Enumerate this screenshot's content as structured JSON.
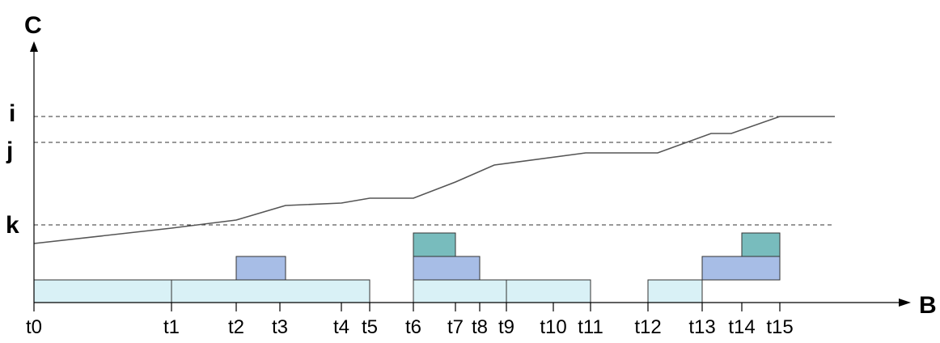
{
  "axes": {
    "x_label": "B",
    "y_label": "C"
  },
  "levels": [
    {
      "label": "i"
    },
    {
      "label": "j"
    },
    {
      "label": "k"
    }
  ],
  "ticks": [
    "t0",
    "t1",
    "t2",
    "t3",
    "t4",
    "t5",
    "t6",
    "t7",
    "t8",
    "t9",
    "t10",
    "t11",
    "t12",
    "t13",
    "t14",
    "t15"
  ],
  "colors": {
    "light_block": "#d9f1f6",
    "mid_block": "#a7bde6",
    "dark_block": "#78bcbd",
    "curve": "#555555",
    "dashed": "#333333"
  }
}
